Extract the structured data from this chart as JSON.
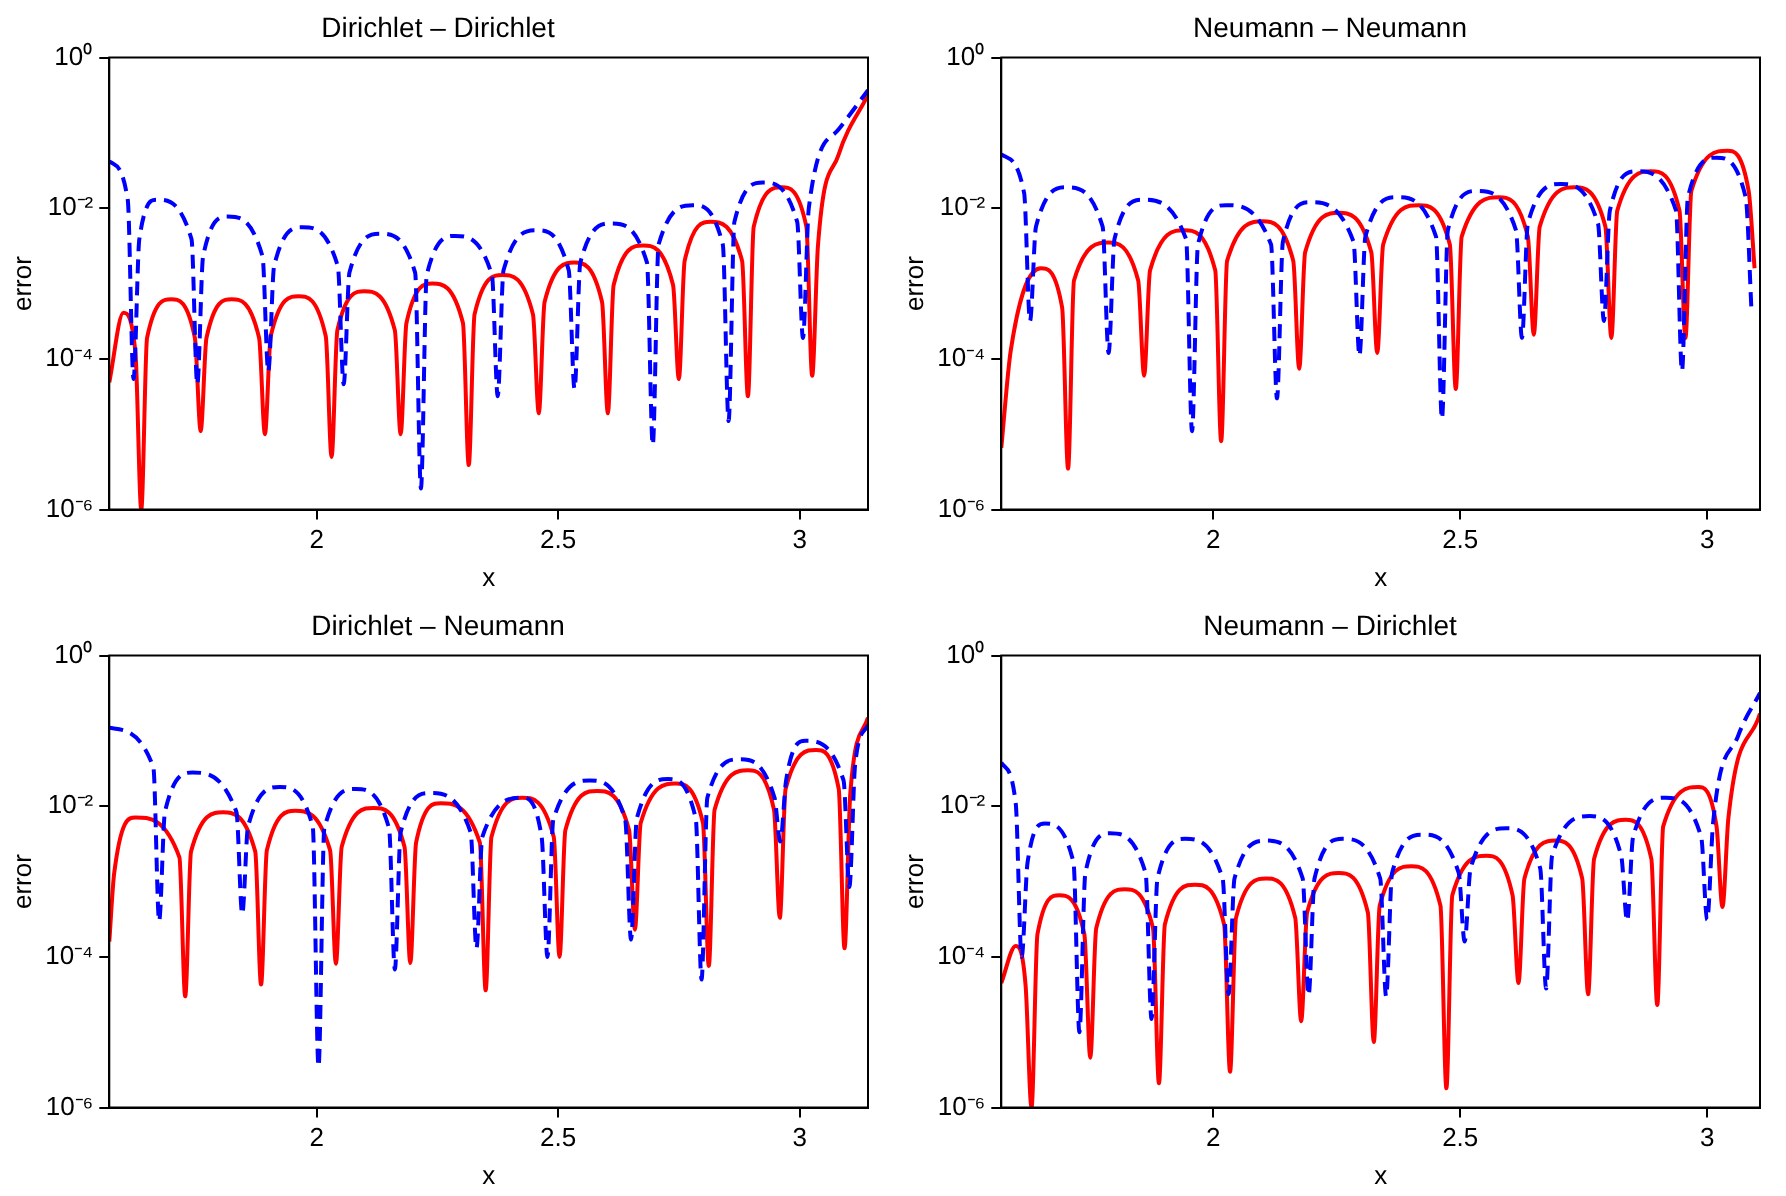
{
  "chart_data": [
    {
      "type": "line",
      "title": "Dirichlet – Dirichlet",
      "xlabel": "x",
      "ylabel": "error",
      "xlim": [
        1.5708,
        3.1416
      ],
      "xticks": [
        2,
        2.5,
        3
      ],
      "ylim": [
        1e-06,
        1
      ],
      "yticks": [
        {
          "value": 1e-06,
          "label": "10⁻⁶"
        },
        {
          "value": 0.0001,
          "label": "10⁻⁴"
        },
        {
          "value": 0.01,
          "label": "10⁻²"
        },
        {
          "value": 1,
          "label": "10⁰"
        }
      ],
      "log": "y",
      "grid": false,
      "legend": false,
      "marker": "none",
      "series": [
        {
          "color": "#0000ff",
          "line_style": "dashed",
          "x": [
            1.5708,
            1.609,
            1.621,
            1.633,
            1.669,
            1.741,
            1.753,
            1.765,
            1.816,
            1.888,
            1.9,
            1.912,
            1.971,
            2.044,
            2.056,
            2.068,
            2.132,
            2.204,
            2.216,
            2.228,
            2.287,
            2.363,
            2.375,
            2.387,
            2.456,
            2.522,
            2.534,
            2.546,
            2.61,
            2.684,
            2.696,
            2.708,
            2.779,
            2.841,
            2.853,
            2.865,
            2.924,
            2.995,
            3.007,
            3.019,
            3.08,
            3.1416
          ],
          "values": [
            0.042,
            0.013,
            5.4e-05,
            0.0039,
            0.013,
            0.0039,
            4.6e-05,
            0.0023,
            0.0078,
            0.0023,
            6.8e-05,
            0.0017,
            0.0056,
            0.0017,
            4.6e-05,
            0.0014,
            0.0046,
            0.0014,
            1.9e-06,
            0.0013,
            0.0043,
            0.0013,
            3.2e-05,
            0.0015,
            0.0051,
            0.0015,
            4e-05,
            0.0019,
            0.0063,
            0.0019,
            7.2e-06,
            0.0033,
            0.011,
            0.0033,
            1.5e-05,
            0.0066,
            0.022,
            0.0066,
            0.00019,
            0.01,
            0.11,
            0.37
          ]
        },
        {
          "color": "#ff0000",
          "line_style": "solid",
          "x": [
            1.5708,
            1.6,
            1.625,
            1.637,
            1.649,
            1.699,
            1.748,
            1.76,
            1.772,
            1.824,
            1.881,
            1.893,
            1.905,
            1.963,
            2.019,
            2.031,
            2.043,
            2.099,
            2.162,
            2.174,
            2.186,
            2.24,
            2.303,
            2.315,
            2.327,
            2.385,
            2.448,
            2.46,
            2.472,
            2.534,
            2.591,
            2.603,
            2.615,
            2.676,
            2.738,
            2.75,
            2.762,
            2.816,
            2.881,
            2.893,
            2.905,
            2.963,
            3.014,
            3.026,
            3.038,
            3.08,
            3.1416
          ],
          "values": [
            4.9e-05,
            0.00041,
            0.00012,
            1e-06,
            0.00019,
            0.00062,
            0.00019,
            1.1e-05,
            0.00019,
            0.00062,
            0.00019,
            1e-05,
            0.0002,
            0.00068,
            0.0002,
            5e-06,
            0.00024,
            0.00079,
            0.00024,
            1e-05,
            0.0003,
            0.001,
            0.0003,
            3.9e-06,
            0.00039,
            0.0013,
            0.00039,
            1.9e-05,
            0.00057,
            0.0019,
            0.00057,
            1.9e-05,
            0.00096,
            0.0032,
            0.00096,
            5.4e-05,
            0.002,
            0.0066,
            0.002,
            3.2e-05,
            0.0057,
            0.019,
            0.0057,
            6e-05,
            0.0032,
            0.05,
            0.32
          ]
        }
      ]
    },
    {
      "type": "line",
      "title": "Neumann – Neumann",
      "xlabel": "x",
      "ylabel": "error",
      "xlim": [
        1.5708,
        3.107
      ],
      "xticks": [
        2,
        2.5,
        3
      ],
      "ylim": [
        1e-06,
        1
      ],
      "yticks": [
        {
          "value": 1e-06,
          "label": "10⁻⁶"
        },
        {
          "value": 0.0001,
          "label": "10⁻⁴"
        },
        {
          "value": 0.01,
          "label": "10⁻²"
        },
        {
          "value": 1,
          "label": "10⁰"
        }
      ],
      "log": "y",
      "grid": false,
      "legend": false,
      "marker": "none",
      "series": [
        {
          "color": "#0000ff",
          "line_style": "dashed",
          "x": [
            1.5708,
            1.617,
            1.629,
            1.641,
            1.703,
            1.776,
            1.788,
            1.8,
            1.857,
            1.945,
            1.957,
            1.969,
            2.026,
            2.117,
            2.129,
            2.141,
            2.196,
            2.284,
            2.296,
            2.308,
            2.372,
            2.451,
            2.463,
            2.475,
            2.534,
            2.613,
            2.625,
            2.637,
            2.703,
            2.779,
            2.791,
            2.803,
            2.857,
            2.937,
            2.949,
            2.961,
            3.019,
            3.078,
            3.09
          ],
          "values": [
            0.052,
            0.016,
            0.00032,
            0.0057,
            0.019,
            0.0057,
            0.00012,
            0.0039,
            0.013,
            0.0039,
            1.1e-05,
            0.0033,
            0.011,
            0.0033,
            3e-05,
            0.0036,
            0.012,
            0.0036,
            0.00011,
            0.0042,
            0.014,
            0.0042,
            1.6e-05,
            0.0051,
            0.017,
            0.0051,
            0.00019,
            0.0063,
            0.021,
            0.0063,
            0.00032,
            0.0093,
            0.031,
            0.0093,
            6.9e-05,
            0.014,
            0.047,
            0.014,
            0.00041
          ]
        },
        {
          "color": "#ff0000",
          "line_style": "solid",
          "x": [
            1.5708,
            1.59,
            1.651,
            1.694,
            1.706,
            1.718,
            1.787,
            1.848,
            1.86,
            1.872,
            1.941,
            2.004,
            2.016,
            2.028,
            2.1,
            2.162,
            2.174,
            2.186,
            2.254,
            2.32,
            2.332,
            2.344,
            2.416,
            2.479,
            2.491,
            2.503,
            2.578,
            2.637,
            2.649,
            2.661,
            2.732,
            2.794,
            2.806,
            2.818,
            2.887,
            2.944,
            2.956,
            2.968,
            3.041,
            3.084,
            3.096
          ],
          "values": [
            6.6e-06,
            0.00013,
            0.0016,
            0.00048,
            3.5e-06,
            0.0011,
            0.0035,
            0.0011,
            6e-05,
            0.0015,
            0.0051,
            0.0015,
            8.1e-06,
            0.002,
            0.0067,
            0.002,
            7.4e-05,
            0.0026,
            0.0087,
            0.0026,
            0.00012,
            0.0033,
            0.011,
            0.0033,
            4e-05,
            0.0042,
            0.014,
            0.0042,
            0.00021,
            0.0057,
            0.019,
            0.0057,
            0.00019,
            0.0093,
            0.031,
            0.0093,
            0.00019,
            0.017,
            0.058,
            0.017,
            0.0016
          ]
        }
      ]
    },
    {
      "type": "line",
      "title": "Dirichlet – Neumann",
      "xlabel": "x",
      "ylabel": "error",
      "xlim": [
        1.5708,
        3.1416
      ],
      "xticks": [
        2,
        2.5,
        3
      ],
      "ylim": [
        1e-06,
        1
      ],
      "yticks": [
        {
          "value": 1e-06,
          "label": "10⁻⁶"
        },
        {
          "value": 0.0001,
          "label": "10⁻⁴"
        },
        {
          "value": 0.01,
          "label": "10⁻²"
        },
        {
          "value": 1,
          "label": "10⁰"
        }
      ],
      "log": "y",
      "grid": false,
      "legend": false,
      "marker": "none",
      "series": [
        {
          "color": "#0000ff",
          "line_style": "dashed",
          "x": [
            1.5708,
            1.662,
            1.674,
            1.686,
            1.743,
            1.834,
            1.846,
            1.858,
            1.924,
            1.992,
            2.004,
            2.016,
            2.081,
            2.15,
            2.162,
            2.174,
            2.235,
            2.319,
            2.331,
            2.343,
            2.426,
            2.466,
            2.478,
            2.49,
            2.566,
            2.639,
            2.651,
            2.663,
            2.728,
            2.785,
            2.797,
            2.809,
            2.875,
            2.948,
            2.96,
            2.972,
            3.012,
            3.091,
            3.103,
            3.115,
            3.1416
          ],
          "values": [
            0.11,
            0.033,
            0.0003,
            0.0084,
            0.028,
            0.0084,
            0.00037,
            0.0054,
            0.018,
            0.0054,
            3.5e-06,
            0.0051,
            0.017,
            0.0051,
            6.8e-05,
            0.0045,
            0.015,
            0.0045,
            0.00013,
            0.0039,
            0.013,
            0.0039,
            0.0001,
            0.0066,
            0.022,
            0.0066,
            0.00017,
            0.0069,
            0.023,
            0.0069,
            5e-05,
            0.013,
            0.042,
            0.013,
            0.0034,
            0.022,
            0.074,
            0.022,
            0.00085,
            0.036,
            0.12
          ]
        },
        {
          "color": "#ff0000",
          "line_style": "solid",
          "x": [
            1.5708,
            1.581,
            1.625,
            1.716,
            1.728,
            1.74,
            1.806,
            1.873,
            1.885,
            1.897,
            1.956,
            2.028,
            2.04,
            2.052,
            2.118,
            2.182,
            2.194,
            2.206,
            2.257,
            2.338,
            2.35,
            2.362,
            2.426,
            2.491,
            2.503,
            2.515,
            2.581,
            2.647,
            2.659,
            2.671,
            2.743,
            2.8,
            2.812,
            2.824,
            2.893,
            2.947,
            2.959,
            2.971,
            3.034,
            3.081,
            3.093,
            3.105,
            3.1416
          ],
          "values": [
            0.00016,
            0.0013,
            0.0071,
            0.0021,
            3e-05,
            0.0025,
            0.0083,
            0.0025,
            4.3e-05,
            0.0026,
            0.0087,
            0.0026,
            8.1e-05,
            0.0029,
            0.0095,
            0.0029,
            8.3e-05,
            0.0033,
            0.011,
            0.0033,
            3.6e-05,
            0.0039,
            0.013,
            0.0039,
            0.0001,
            0.0048,
            0.016,
            0.0048,
            0.00023,
            0.006,
            0.02,
            0.006,
            7.6e-05,
            0.009,
            0.03,
            0.009,
            0.00033,
            0.017,
            0.056,
            0.017,
            0.00013,
            0.015,
            0.15
          ]
        }
      ]
    },
    {
      "type": "line",
      "title": "Neumann – Dirichlet",
      "xlabel": "x",
      "ylabel": "error",
      "xlim": [
        1.5708,
        3.107
      ],
      "xticks": [
        2,
        2.5,
        3
      ],
      "ylim": [
        1e-06,
        1
      ],
      "yticks": [
        {
          "value": 1e-06,
          "label": "10⁻⁶"
        },
        {
          "value": 0.0001,
          "label": "10⁻⁴"
        },
        {
          "value": 0.01,
          "label": "10⁻²"
        },
        {
          "value": 1,
          "label": "10⁰"
        }
      ],
      "log": "y",
      "grid": false,
      "legend": false,
      "marker": "none",
      "series": [
        {
          "color": "#0000ff",
          "line_style": "dashed",
          "x": [
            1.5708,
            1.6,
            1.612,
            1.624,
            1.659,
            1.717,
            1.729,
            1.741,
            1.791,
            1.863,
            1.875,
            1.887,
            1.943,
            2.019,
            2.031,
            2.043,
            2.107,
            2.181,
            2.193,
            2.205,
            2.262,
            2.338,
            2.35,
            2.362,
            2.424,
            2.497,
            2.509,
            2.521,
            2.593,
            2.662,
            2.674,
            2.686,
            2.762,
            2.826,
            2.838,
            2.85,
            2.916,
            2.988,
            3.0,
            3.012,
            3.063,
            3.107
          ],
          "values": [
            0.038,
            0.011,
            0.0001,
            0.0018,
            0.0059,
            0.0018,
            1e-05,
            0.0013,
            0.0044,
            0.0013,
            1.5e-05,
            0.0011,
            0.0037,
            0.0011,
            3.2e-05,
            0.0011,
            0.0035,
            0.0011,
            3.1e-05,
            0.0011,
            0.0037,
            0.0011,
            3e-05,
            0.0013,
            0.0042,
            0.0013,
            0.00016,
            0.0015,
            0.0051,
            0.0015,
            3.8e-05,
            0.0022,
            0.0074,
            0.0022,
            0.0003,
            0.0039,
            0.013,
            0.0039,
            0.00031,
            0.006,
            0.087,
            0.32
          ]
        },
        {
          "color": "#ff0000",
          "line_style": "solid",
          "x": [
            1.5708,
            1.6,
            1.62,
            1.632,
            1.644,
            1.688,
            1.739,
            1.751,
            1.763,
            1.821,
            1.878,
            1.89,
            1.902,
            1.963,
            2.022,
            2.034,
            2.046,
            2.107,
            2.166,
            2.178,
            2.19,
            2.254,
            2.313,
            2.325,
            2.337,
            2.401,
            2.46,
            2.472,
            2.484,
            2.553,
            2.606,
            2.618,
            2.63,
            2.693,
            2.747,
            2.759,
            2.771,
            2.835,
            2.887,
            2.899,
            2.911,
            2.982,
            3.019,
            3.031,
            3.043,
            3.107
          ],
          "values": [
            4.5e-05,
            0.00014,
            4.2e-05,
            1e-06,
            0.0002,
            0.00066,
            0.0002,
            4.6e-06,
            0.00024,
            0.00079,
            0.00024,
            2.1e-06,
            0.00027,
            0.00091,
            0.00027,
            3e-06,
            0.00033,
            0.0011,
            0.00033,
            1.4e-05,
            0.00039,
            0.0013,
            0.00039,
            7.4e-06,
            0.00048,
            0.0016,
            0.00048,
            1.8e-06,
            0.00066,
            0.0022,
            0.00066,
            4.5e-05,
            0.0011,
            0.0035,
            0.0011,
            3.2e-05,
            0.002,
            0.0066,
            0.002,
            2.3e-05,
            0.0054,
            0.018,
            0.0054,
            0.00046,
            0.007,
            0.17
          ]
        }
      ]
    }
  ]
}
